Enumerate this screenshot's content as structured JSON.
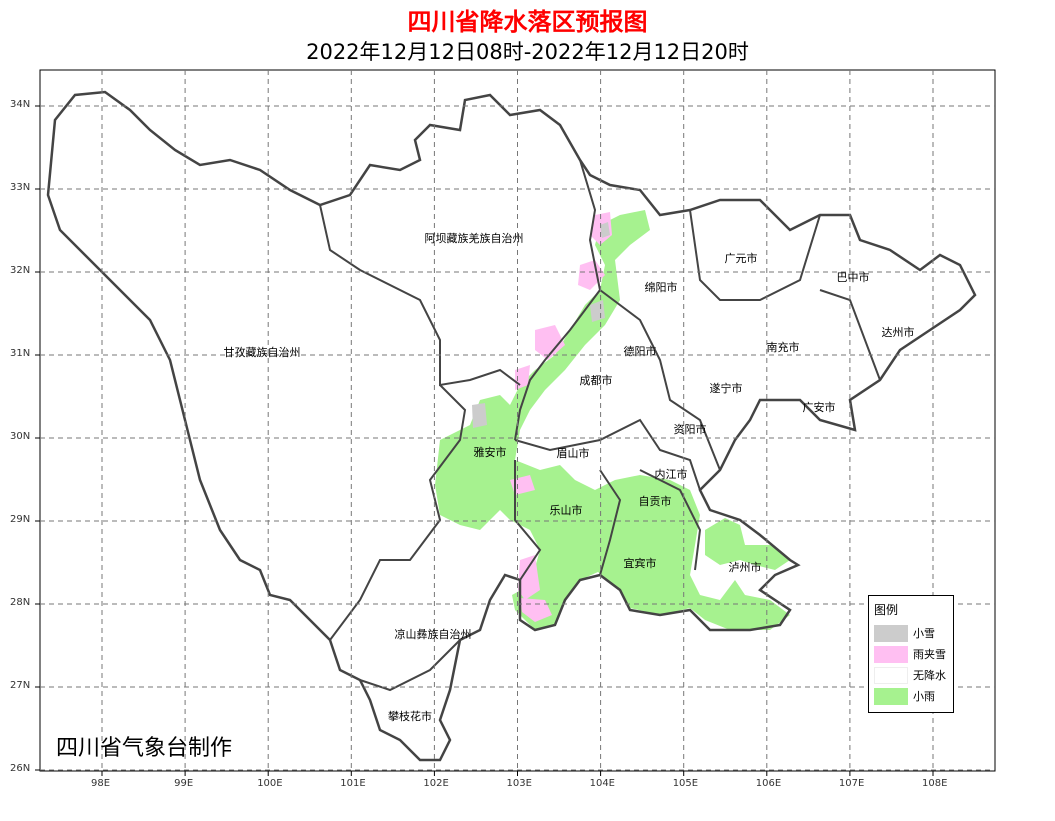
{
  "title": "四川省降水落区预报图",
  "subtitle": "2022年12月12日08时-2022年12月12日20时",
  "credit": "四川省气象台制作",
  "axes": {
    "lon_ticks": [
      "98E",
      "99E",
      "100E",
      "101E",
      "102E",
      "103E",
      "104E",
      "105E",
      "106E",
      "107E",
      "108E"
    ],
    "lat_ticks": [
      "34N",
      "33N",
      "32N",
      "31N",
      "30N",
      "29N",
      "28N",
      "27N",
      "26N"
    ],
    "grid": "dashed"
  },
  "regions": {
    "aba": "阿坝藏族羌族自治州",
    "ganzi": "甘孜藏族自治州",
    "liangshan": "凉山彝族自治州",
    "panzhihua": "攀枝花市",
    "yaan": "雅安市",
    "meishan": "眉山市",
    "leshan": "乐山市",
    "chengdu": "成都市",
    "deyang": "德阳市",
    "mianyang": "绵阳市",
    "guangyuan": "广元市",
    "bazhong": "巴中市",
    "dazhou": "达州市",
    "nanchong": "南充市",
    "suining": "遂宁市",
    "guangan": "广安市",
    "ziyang": "资阳市",
    "neijiang": "内江市",
    "zigong": "自贡市",
    "yibin": "宜宾市",
    "luzhou": "泸州市"
  },
  "legend": {
    "title": "图例",
    "items": [
      {
        "label": "小雪",
        "color": "#cccccc"
      },
      {
        "label": "雨夹雪",
        "color": "#ffbff2"
      },
      {
        "label": "无降水",
        "color": "#ffffff"
      },
      {
        "label": "小雨",
        "color": "#a6f28f"
      }
    ]
  }
}
